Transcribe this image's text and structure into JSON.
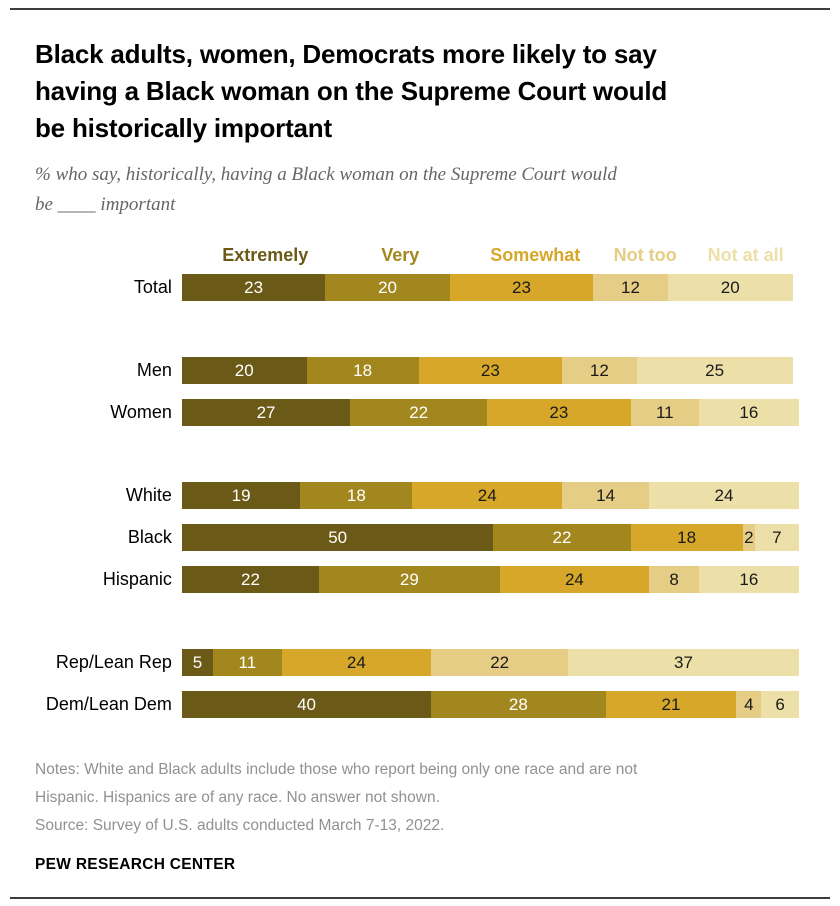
{
  "footer": {
    "notes": "Notes: White and Black adults include those who report being only one race and are not\nHispanic. Hispanics are of any race. No answer not shown.",
    "source": "Source: Survey of U.S. adults conducted March 7-13, 2022.",
    "brand": "PEW RESEARCH CENTER"
  },
  "chart_data": {
    "type": "bar",
    "stacked": true,
    "orientation": "horizontal",
    "title": "Black adults, women, Democrats more likely to say\nhaving a Black woman on the Supreme Court would\nbe historically important",
    "subtitle": "% who say, historically, having a Black woman on the Supreme Court would\nbe ____ important",
    "unit": "%",
    "xlim": [
      0,
      100
    ],
    "grid": false,
    "legend_position": "top",
    "categories": [
      "Total",
      "Men",
      "Women",
      "White",
      "Black",
      "Hispanic",
      "Rep/Lean Rep",
      "Dem/Lean Dem"
    ],
    "row_groups": [
      [
        "Total"
      ],
      [
        "Men",
        "Women"
      ],
      [
        "White",
        "Black",
        "Hispanic"
      ],
      [
        "Rep/Lean Rep",
        "Dem/Lean Dem"
      ]
    ],
    "series": [
      {
        "name": "Extremely",
        "color": "#6b5917",
        "label_color": "#ffffff",
        "values": [
          23,
          20,
          27,
          19,
          50,
          22,
          5,
          40
        ]
      },
      {
        "name": "Very",
        "color": "#a2871e",
        "label_color": "#ffffff",
        "values": [
          20,
          18,
          22,
          18,
          22,
          29,
          11,
          28
        ]
      },
      {
        "name": "Somewhat",
        "color": "#d6a728",
        "label_color": "#1a1a1a",
        "values": [
          23,
          23,
          23,
          24,
          18,
          24,
          24,
          21
        ]
      },
      {
        "name": "Not too",
        "color": "#e5cd85",
        "label_color": "#1a1a1a",
        "values": [
          12,
          12,
          11,
          14,
          2,
          8,
          22,
          4
        ]
      },
      {
        "name": "Not at all",
        "color": "#ecdfa8",
        "label_color": "#1a1a1a",
        "values": [
          20,
          25,
          16,
          24,
          7,
          16,
          37,
          6
        ]
      }
    ]
  }
}
